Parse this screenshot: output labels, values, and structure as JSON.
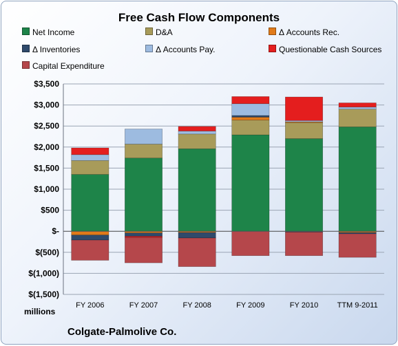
{
  "chart_data": {
    "type": "bar",
    "stacked": true,
    "title": "Free Cash Flow Components",
    "categories": [
      "FY 2006",
      "FY 2007",
      "FY 2008",
      "FY 2009",
      "FY 2010",
      "TTM 9-2011"
    ],
    "ylim": [
      -1500,
      3500
    ],
    "yticks": [
      {
        "value": 3500,
        "label": "$3,500"
      },
      {
        "value": 3000,
        "label": "$3,000"
      },
      {
        "value": 2500,
        "label": "$2,500"
      },
      {
        "value": 2000,
        "label": "$2,000"
      },
      {
        "value": 1500,
        "label": "$1,500"
      },
      {
        "value": 1000,
        "label": "$1,000"
      },
      {
        "value": 500,
        "label": "$500"
      },
      {
        "value": 0,
        "label": "$-"
      },
      {
        "value": -500,
        "label": "$(500)"
      },
      {
        "value": -1000,
        "label": "$(1,000)"
      },
      {
        "value": -1500,
        "label": "$(1,500)"
      }
    ],
    "grid": true,
    "legend_position": "top",
    "unit_label": "millions",
    "series": [
      {
        "name": "Net Income",
        "color": "#1e8449",
        "values": [
          1350,
          1740,
          1960,
          2290,
          2200,
          2480
        ]
      },
      {
        "name": "D&A",
        "color": "#a89b5a",
        "values": [
          330,
          330,
          350,
          350,
          380,
          420
        ]
      },
      {
        "name": "Δ Accounts Rec.",
        "color": "#e07a19",
        "values": [
          -90,
          -40,
          -30,
          70,
          20,
          -30
        ]
      },
      {
        "name": "Δ Inventories",
        "color": "#2f4a6b",
        "values": [
          -120,
          -80,
          -130,
          40,
          -20,
          -30
        ]
      },
      {
        "name": "Δ Accounts Pay.",
        "color": "#9dbbe0",
        "values": [
          140,
          360,
          70,
          280,
          30,
          50
        ]
      },
      {
        "name": "Questionable Cash Sources",
        "color": "#e41e1e",
        "values": [
          160,
          -30,
          110,
          170,
          560,
          100
        ]
      },
      {
        "name": "Capital Expenditure",
        "color": "#b5474b",
        "values": [
          -480,
          -600,
          -680,
          -580,
          -560,
          -560
        ]
      }
    ]
  },
  "company": "Colgate-Palmolive Co."
}
